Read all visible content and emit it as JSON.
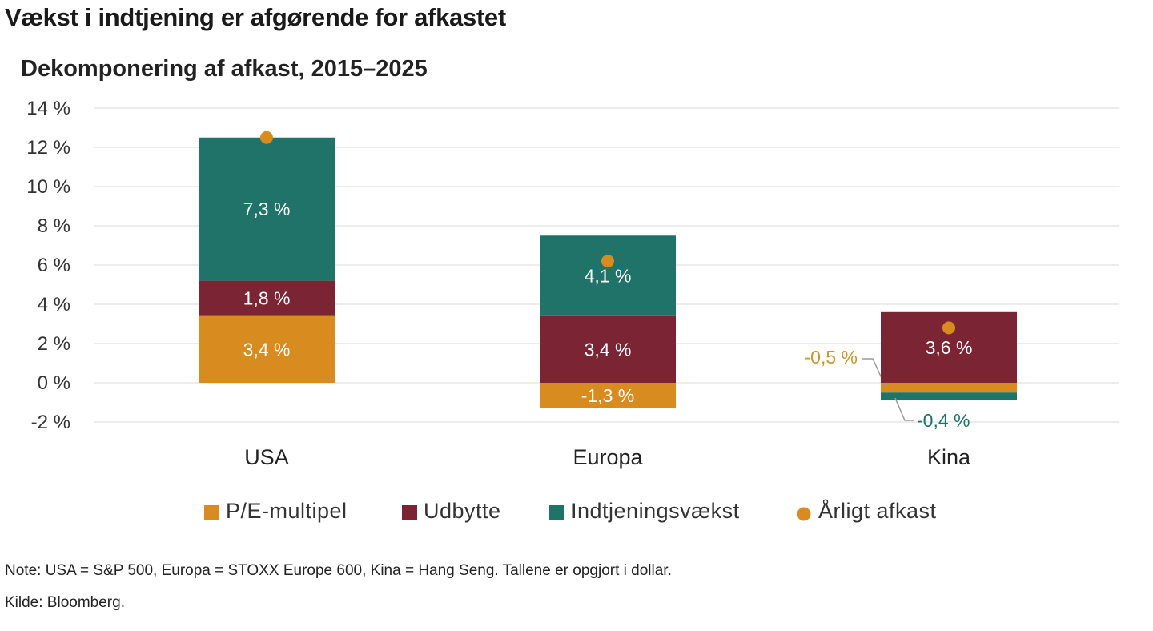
{
  "title": "Vækst i indtjening er afgørende for afkastet",
  "subtitle": "Dekomponering af afkast, 2015–2025",
  "note": "Note: USA = S&P 500, Europa = STOXX Europe 600, Kina = Hang Seng. Tallene er opgjort i dollar.",
  "source": "Kilde: Bloomberg.",
  "colors": {
    "pe": "#d88b1f",
    "dividend": "#7a2434",
    "earnings": "#1f7369",
    "annual": "#d88b1f",
    "grid": "#e6e6e6",
    "outside_pe_label": "#c9962a",
    "outside_earnings_label": "#1f7369"
  },
  "chart_data": {
    "type": "bar",
    "stacked": true,
    "categories": [
      "USA",
      "Europa",
      "Kina"
    ],
    "series": [
      {
        "name": "P/E-multipel",
        "values": [
          3.4,
          -1.3,
          -0.5
        ],
        "labels": [
          "3,4 %",
          "-1,3 %",
          "-0,5 %"
        ]
      },
      {
        "name": "Udbytte",
        "values": [
          1.8,
          3.4,
          3.6
        ],
        "labels": [
          "1,8 %",
          "3,4 %",
          "3,6 %"
        ]
      },
      {
        "name": "Indtjeningsvækst",
        "values": [
          7.3,
          4.1,
          -0.4
        ],
        "labels": [
          "7,3 %",
          "4,1 %",
          "-0,4 %"
        ]
      }
    ],
    "annual_return": {
      "name": "Årligt afkast",
      "values": [
        12.5,
        6.2,
        2.8
      ]
    },
    "yticks": [
      "14 %",
      "12 %",
      "10 %",
      "8 %",
      "6 %",
      "4 %",
      "2 %",
      "0 %",
      "-2 %"
    ],
    "ylim": [
      -2,
      14
    ],
    "grid": true,
    "legend": "bottom"
  }
}
